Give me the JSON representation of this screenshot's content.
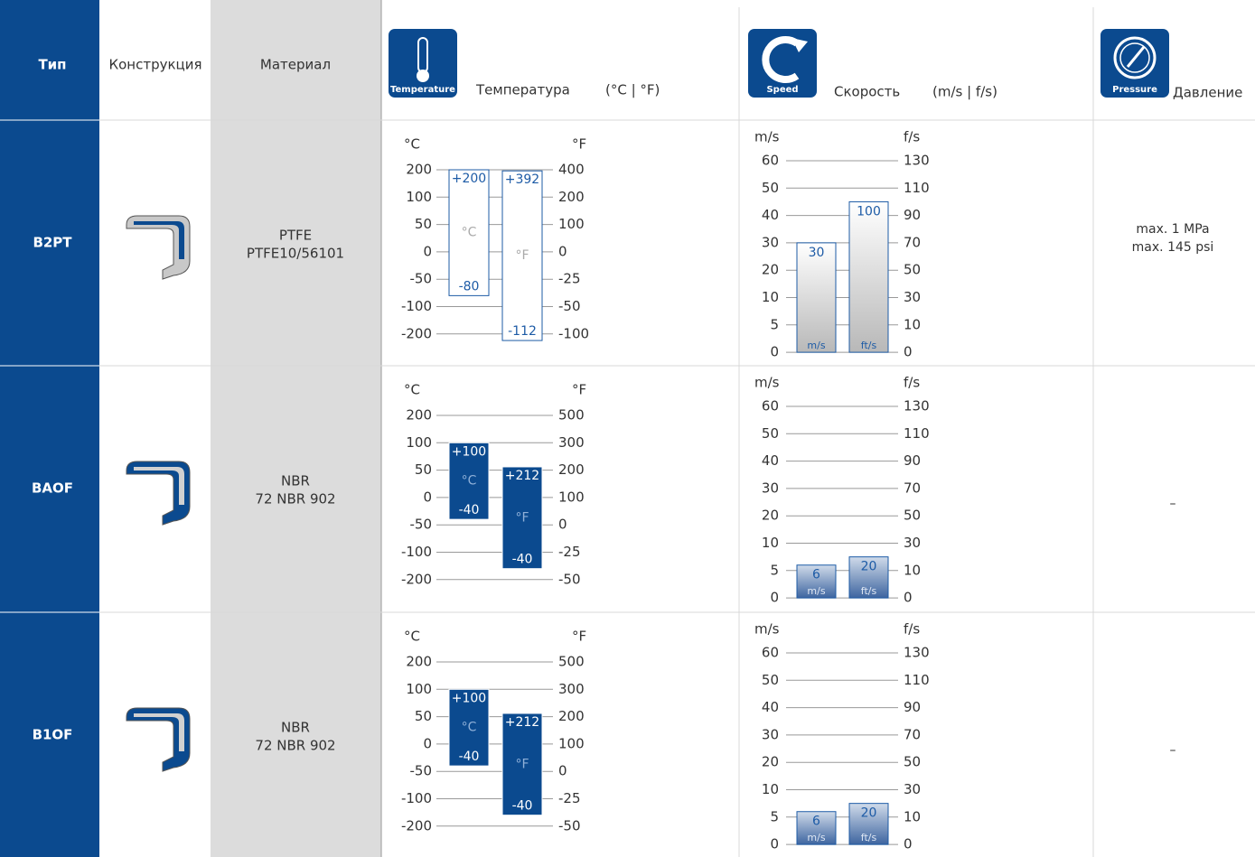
{
  "header": {
    "type": "Тип",
    "construction": "Конструкция",
    "material": "Материал",
    "temperature": {
      "icon": "Temperature",
      "label": "Температура",
      "unit": "(°C | °F)"
    },
    "speed": {
      "icon": "Speed",
      "label": "Скорость",
      "unit": "(m/s | f/s)"
    },
    "pressure": {
      "icon": "Pressure",
      "label": "Давление"
    }
  },
  "rows": [
    {
      "type": "B2PT",
      "material": {
        "name": "PTFE",
        "code": "PTFE10/56101"
      },
      "temperature": {
        "left_unit": "°C",
        "right_unit": "°F",
        "left_ticks": [
          200,
          100,
          50,
          0,
          -50,
          -100,
          -200
        ],
        "right_ticks": [
          400,
          200,
          100,
          0,
          -25,
          -50,
          -100
        ],
        "color": "#ffffff",
        "bars": [
          {
            "axis": "left",
            "max": {
              "value": 200,
              "label": "+200"
            },
            "min": -80,
            "unit": "°C"
          },
          {
            "axis": "right",
            "max": {
              "value": 392,
              "label": "+392"
            },
            "min": -112,
            "unit": "°F"
          }
        ]
      },
      "speed": {
        "left_unit": "m/s",
        "right_unit": "f/s",
        "left_ticks": [
          60,
          50,
          40,
          30,
          20,
          10,
          5,
          0
        ],
        "right_ticks": [
          130,
          110,
          90,
          70,
          50,
          30,
          10,
          0
        ],
        "color": "#ffffff",
        "bars": [
          {
            "axis": "left",
            "value": 30,
            "unit": "m/s"
          },
          {
            "axis": "right",
            "value": 100,
            "unit": "ft/s"
          }
        ]
      },
      "pressure": [
        "max. 1 MPa",
        "max. 145 psi"
      ]
    },
    {
      "type": "BAOF",
      "material": {
        "name": "NBR",
        "code": "72 NBR 902"
      },
      "temperature": {
        "left_unit": "°C",
        "right_unit": "°F",
        "left_ticks": [
          200,
          100,
          50,
          0,
          -50,
          -100,
          -200
        ],
        "right_ticks": [
          500,
          300,
          200,
          100,
          0,
          -25,
          -50
        ],
        "color": "#0b4a8f",
        "bars": [
          {
            "axis": "left",
            "max": {
              "value": 100,
              "label": "+100"
            },
            "min": -40,
            "unit": "°C"
          },
          {
            "axis": "right",
            "max": {
              "value": 212,
              "label": "+212"
            },
            "min": -40,
            "unit": "°F"
          }
        ]
      },
      "speed": {
        "left_unit": "m/s",
        "right_unit": "f/s",
        "left_ticks": [
          60,
          50,
          40,
          30,
          20,
          10,
          5,
          0
        ],
        "right_ticks": [
          130,
          110,
          90,
          70,
          50,
          30,
          10,
          0
        ],
        "color": "#0b4a8f",
        "bars": [
          {
            "axis": "left",
            "value": 6,
            "unit": "m/s"
          },
          {
            "axis": "right",
            "value": 20,
            "unit": "ft/s"
          }
        ]
      },
      "pressure": [
        "–"
      ]
    },
    {
      "type": "B1OF",
      "material": {
        "name": "NBR",
        "code": "72 NBR 902"
      },
      "temperature": {
        "left_unit": "°C",
        "right_unit": "°F",
        "left_ticks": [
          200,
          100,
          50,
          0,
          -50,
          -100,
          -200
        ],
        "right_ticks": [
          500,
          300,
          200,
          100,
          0,
          -25,
          -50
        ],
        "color": "#0b4a8f",
        "bars": [
          {
            "axis": "left",
            "max": {
              "value": 100,
              "label": "+100"
            },
            "min": -40,
            "unit": "°C"
          },
          {
            "axis": "right",
            "max": {
              "value": 212,
              "label": "+212"
            },
            "min": -40,
            "unit": "°F"
          }
        ]
      },
      "speed": {
        "left_unit": "m/s",
        "right_unit": "f/s",
        "left_ticks": [
          60,
          50,
          40,
          30,
          20,
          10,
          5,
          0
        ],
        "right_ticks": [
          130,
          110,
          90,
          70,
          50,
          30,
          10,
          0
        ],
        "color": "#0b4a8f",
        "bars": [
          {
            "axis": "left",
            "value": 6,
            "unit": "m/s"
          },
          {
            "axis": "right",
            "value": 20,
            "unit": "ft/s"
          }
        ]
      },
      "pressure": [
        "–"
      ]
    }
  ]
}
